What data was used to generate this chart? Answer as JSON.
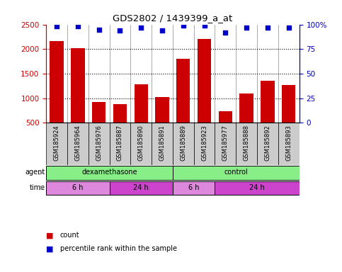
{
  "title": "GDS2802 / 1439399_a_at",
  "samples": [
    "GSM185924",
    "GSM185964",
    "GSM185976",
    "GSM185887",
    "GSM185890",
    "GSM185891",
    "GSM185889",
    "GSM185923",
    "GSM185977",
    "GSM185888",
    "GSM185892",
    "GSM185893"
  ],
  "counts": [
    2160,
    2020,
    920,
    880,
    1290,
    1030,
    1800,
    2200,
    740,
    1090,
    1360,
    1270
  ],
  "percentiles": [
    98,
    98,
    95,
    94,
    97,
    94,
    99,
    99,
    92,
    97,
    97,
    97
  ],
  "bar_color": "#cc0000",
  "dot_color": "#0000cc",
  "ylim_left": [
    500,
    2500
  ],
  "ylim_right": [
    0,
    100
  ],
  "yticks_left": [
    500,
    1000,
    1500,
    2000,
    2500
  ],
  "yticks_right": [
    0,
    25,
    50,
    75,
    100
  ],
  "agent_groups": [
    {
      "label": "dexamethasone",
      "start": 0,
      "end": 6,
      "color": "#88ee88"
    },
    {
      "label": "control",
      "start": 6,
      "end": 12,
      "color": "#88ee88"
    }
  ],
  "time_groups": [
    {
      "label": "6 h",
      "start": 0,
      "end": 3,
      "color": "#dd88dd"
    },
    {
      "label": "24 h",
      "start": 3,
      "end": 6,
      "color": "#cc44cc"
    },
    {
      "label": "6 h",
      "start": 6,
      "end": 8,
      "color": "#dd88dd"
    },
    {
      "label": "24 h",
      "start": 8,
      "end": 12,
      "color": "#cc44cc"
    }
  ],
  "legend_count_color": "#cc0000",
  "legend_pct_color": "#0000cc",
  "tick_label_color_left": "#cc0000",
  "tick_label_color_right": "#0000bb",
  "sample_box_color": "#cccccc",
  "n_samples": 12
}
